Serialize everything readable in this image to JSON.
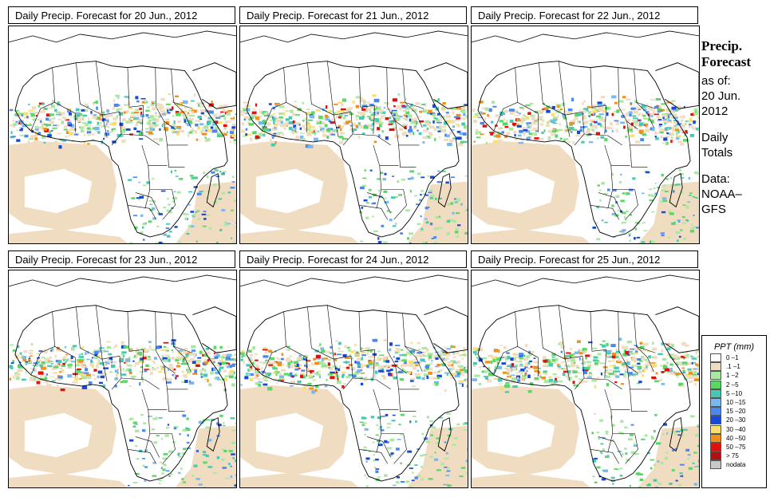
{
  "panels": [
    {
      "title": "Daily Precip. Forecast for  20 Jun., 2012",
      "seed": 1
    },
    {
      "title": "Daily Precip. Forecast for  21 Jun., 2012",
      "seed": 2
    },
    {
      "title": "Daily Precip. Forecast for  22 Jun., 2012",
      "seed": 3
    },
    {
      "title": "Daily Precip. Forecast for  23 Jun., 2012",
      "seed": 4
    },
    {
      "title": "Daily Precip. Forecast for  24 Jun., 2012",
      "seed": 5
    },
    {
      "title": "Daily Precip. Forecast for  25 Jun., 2012",
      "seed": 6
    }
  ],
  "side": {
    "title_line1": "Precip.",
    "title_line2": "Forecast",
    "asof_line1": "as of:",
    "asof_line2": "20 Jun.",
    "asof_line3": "2012",
    "totals_line1": "Daily",
    "totals_line2": "Totals",
    "data_line1": "Data:",
    "data_line2": "NOAA–",
    "data_line3": "GFS"
  },
  "legend": {
    "title": "PPT (mm)",
    "entries": [
      {
        "label": "0 –1",
        "color": "#ffffff"
      },
      {
        "label": ".1 –1",
        "color": "#f0dcc0"
      },
      {
        "label": "1 –2",
        "color": "#a8e8a0"
      },
      {
        "label": "2 –5",
        "color": "#5ad866"
      },
      {
        "label": "5 –10",
        "color": "#48c8b0"
      },
      {
        "label": "10 –15",
        "color": "#7ab8f0"
      },
      {
        "label": "15 –20",
        "color": "#4888f0"
      },
      {
        "label": "20 –30",
        "color": "#1848d8"
      },
      {
        "label": "30 –40",
        "color": "#f8e070"
      },
      {
        "label": "40 –50",
        "color": "#f09018"
      },
      {
        "label": "50 –75",
        "color": "#e01010"
      },
      {
        "label": "> 75",
        "color": "#b01010"
      },
      {
        "label": "nodata",
        "color": "#c8c8c8"
      }
    ]
  }
}
